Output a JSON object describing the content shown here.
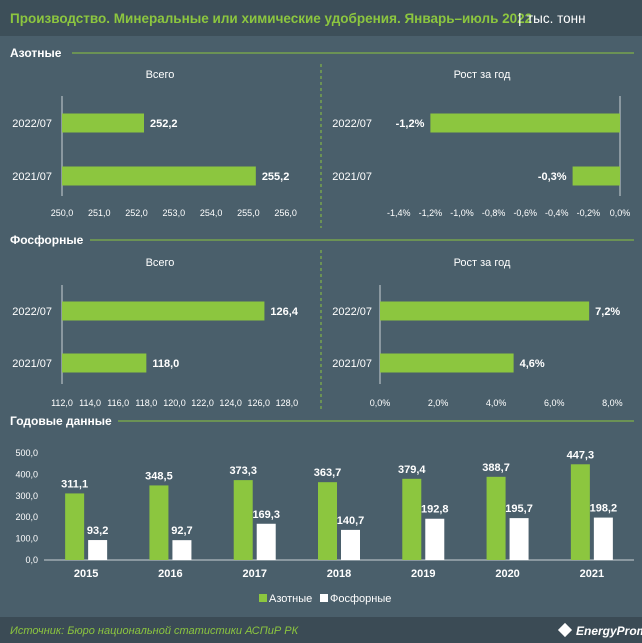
{
  "header": {
    "title": "Производство. Минеральные или химические удобрения. Январь–июль 2022",
    "separator": "|",
    "unit": "тыс. тонн"
  },
  "labels": {
    "total": "Всего",
    "growth": "Рост за год"
  },
  "footer": {
    "source": "Источник: Бюро национальной статистики АСПиР РК",
    "brand": "EnergyProm"
  },
  "colors": {
    "background": "#4a5f6b",
    "green": "#8cc63f",
    "white": "#ffffff",
    "header_bg": "#3d4f59",
    "footer_bg": "#3b4b55",
    "divider": "#8cc63f",
    "axis": "#c9d1d6"
  },
  "chart_data": [
    {
      "id": "nitrogen-total",
      "section": "Азотные",
      "subtitle": "Всего",
      "type": "bar",
      "orientation": "horizontal",
      "categories": [
        "2022/07",
        "2021/07"
      ],
      "values": [
        252.2,
        255.2
      ],
      "value_labels": [
        "252,2",
        "255,2"
      ],
      "xlim": [
        250,
        256.6
      ],
      "ticks": [
        250,
        251,
        252,
        253,
        254,
        255,
        256
      ],
      "tick_labels": [
        "250,0",
        "251,0",
        "252,0",
        "253,0",
        "254,0",
        "255,0",
        "256,0"
      ]
    },
    {
      "id": "nitrogen-growth",
      "section": "Азотные",
      "subtitle": "Рост за год",
      "type": "bar",
      "orientation": "horizontal",
      "categories": [
        "2022/07",
        "2021/07"
      ],
      "values": [
        -1.2,
        -0.3
      ],
      "value_labels": [
        "-1,2%",
        "-0,3%"
      ],
      "xlim": [
        -1.5,
        0
      ],
      "ticks": [
        -1.4,
        -1.2,
        -1.0,
        -0.8,
        -0.6,
        -0.4,
        -0.2,
        0
      ],
      "tick_labels": [
        "-1,4%",
        "-1,2%",
        "-1,0%",
        "-0,8%",
        "-0,6%",
        "-0,4%",
        "-0,2%",
        "0,0%"
      ]
    },
    {
      "id": "phosphate-total",
      "section": "Фосфорные",
      "subtitle": "Всего",
      "type": "bar",
      "orientation": "horizontal",
      "categories": [
        "2022/07",
        "2021/07"
      ],
      "values": [
        126.4,
        118.0
      ],
      "value_labels": [
        "126,4",
        "118,0"
      ],
      "xlim": [
        112,
        129.5
      ],
      "ticks": [
        112,
        114,
        116,
        118,
        120,
        122,
        124,
        126,
        128
      ],
      "tick_labels": [
        "112,0",
        "114,0",
        "116,0",
        "118,0",
        "120,0",
        "122,0",
        "124,0",
        "126,0",
        "128,0"
      ]
    },
    {
      "id": "phosphate-growth",
      "section": "Фосфорные",
      "subtitle": "Рост за год",
      "type": "bar",
      "orientation": "horizontal",
      "categories": [
        "2022/07",
        "2021/07"
      ],
      "values": [
        7.2,
        4.6
      ],
      "value_labels": [
        "7,2%",
        "4,6%"
      ],
      "xlim": [
        0,
        8.4
      ],
      "ticks": [
        0,
        2,
        4,
        6,
        8
      ],
      "tick_labels": [
        "0,0%",
        "2,0%",
        "4,0%",
        "6,0%",
        "8,0%"
      ]
    },
    {
      "id": "annual",
      "section": "Годовые данные",
      "type": "bar",
      "orientation": "vertical",
      "categories": [
        "2015",
        "2016",
        "2017",
        "2018",
        "2019",
        "2020",
        "2021"
      ],
      "ylim": [
        0,
        500
      ],
      "ticks": [
        0,
        100,
        200,
        300,
        400,
        500
      ],
      "tick_labels": [
        "0,0",
        "100,0",
        "200,0",
        "300,0",
        "400,0",
        "500,0"
      ],
      "series": [
        {
          "name": "Азотные",
          "values": [
            311.1,
            348.5,
            373.3,
            363.7,
            379.4,
            388.7,
            447.3
          ],
          "value_labels": [
            "311,1",
            "348,5",
            "373,3",
            "363,7",
            "379,4",
            "388,7",
            "447,3"
          ]
        },
        {
          "name": "Фосфорные",
          "values": [
            93.2,
            92.7,
            169.3,
            140.7,
            192.8,
            195.7,
            198.2
          ],
          "value_labels": [
            "93,2",
            "92,7",
            "169,3",
            "140,7",
            "192,8",
            "195,7",
            "198,2"
          ]
        }
      ],
      "legend": "bottom"
    }
  ]
}
